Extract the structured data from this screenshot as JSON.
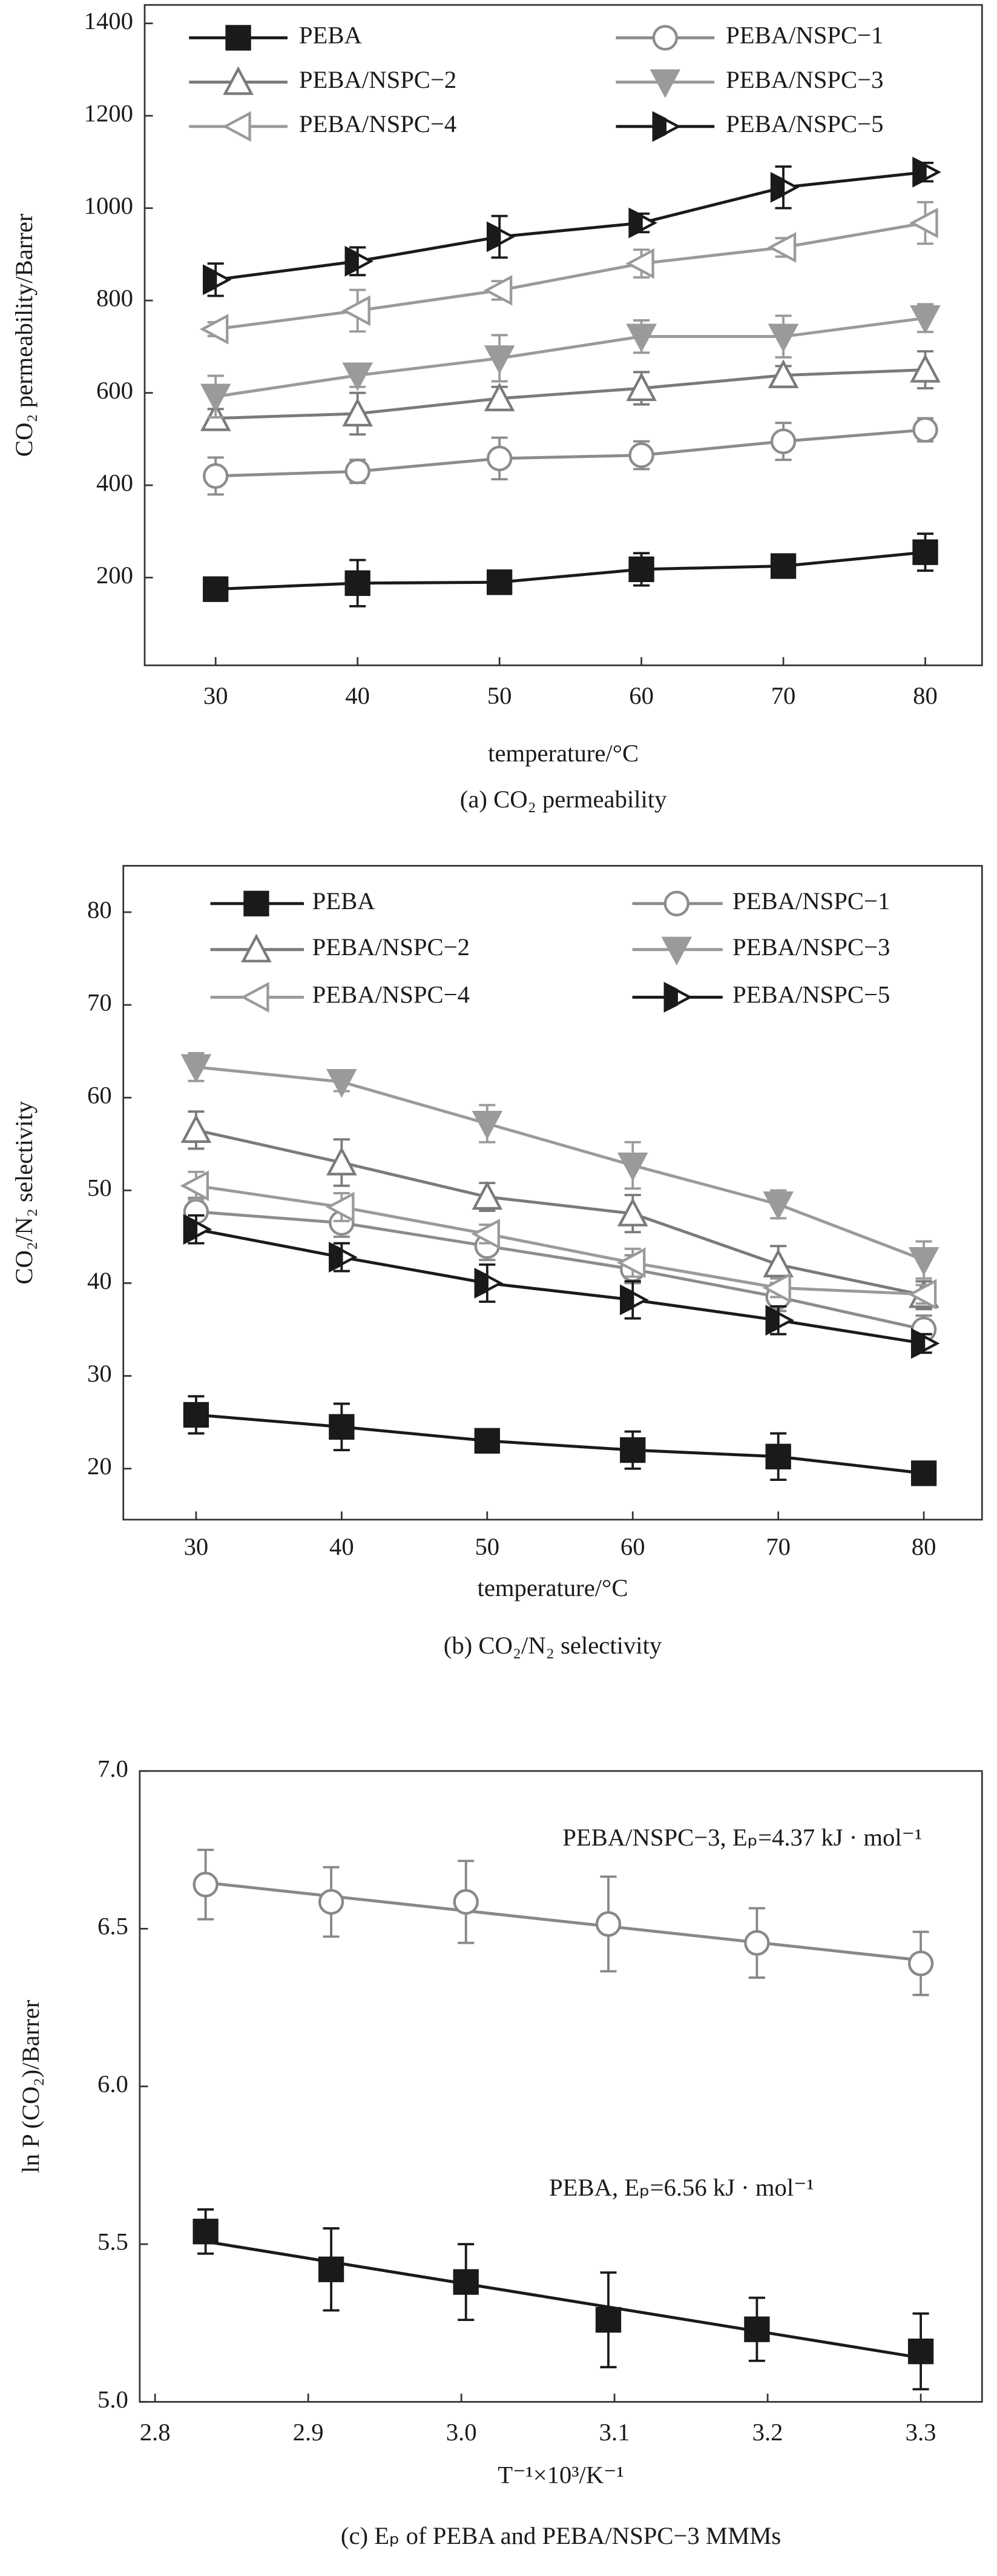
{
  "chart_data": [
    {
      "type": "line",
      "caption": "(a) CO₂ permeability",
      "xlabel": "temperature/°C",
      "ylabel": "CO₂ permeability/Barrer",
      "x": [
        30,
        40,
        50,
        60,
        70,
        80
      ],
      "xlim": [
        25,
        84
      ],
      "xticks": [
        30,
        40,
        50,
        60,
        70,
        80
      ],
      "ylim": [
        10,
        1440
      ],
      "yticks": [
        200,
        400,
        600,
        800,
        1000,
        1200,
        1400
      ],
      "legend": "top",
      "series": [
        {
          "name": "PEBA",
          "color": "#1a1a1a",
          "marker": "square",
          "values": [
            175,
            188,
            190,
            218,
            225,
            255
          ],
          "errors": [
            25,
            50,
            20,
            35,
            15,
            40
          ]
        },
        {
          "name": "PEBA/NSPC−1",
          "color": "#8c8c8c",
          "marker": "circle-open",
          "values": [
            420,
            430,
            458,
            465,
            495,
            520
          ],
          "errors": [
            40,
            25,
            45,
            30,
            40,
            25
          ]
        },
        {
          "name": "PEBA/NSPC−2",
          "color": "#7a7a7a",
          "marker": "triangle-up-open",
          "values": [
            545,
            555,
            588,
            610,
            638,
            650
          ],
          "errors": [
            20,
            45,
            25,
            35,
            20,
            40
          ]
        },
        {
          "name": "PEBA/NSPC−3",
          "color": "#9a9a9a",
          "marker": "triangle-down",
          "values": [
            592,
            638,
            675,
            722,
            722,
            762
          ],
          "errors": [
            45,
            25,
            50,
            35,
            45,
            30
          ]
        },
        {
          "name": "PEBA/NSPC−4",
          "color": "#9a9a9a",
          "marker": "triangle-left-open",
          "values": [
            738,
            778,
            822,
            880,
            915,
            968
          ],
          "errors": [
            15,
            45,
            20,
            30,
            20,
            45
          ]
        },
        {
          "name": "PEBA/NSPC−5",
          "color": "#1a1a1a",
          "marker": "triangle-right-half",
          "values": [
            845,
            885,
            938,
            968,
            1045,
            1078
          ],
          "errors": [
            35,
            30,
            45,
            20,
            45,
            20
          ]
        }
      ]
    },
    {
      "type": "line",
      "caption": "(b) CO₂/N₂ selectivity",
      "xlabel": "temperature/°C",
      "ylabel": "CO₂/N₂ selectivity",
      "x": [
        30,
        40,
        50,
        60,
        70,
        80
      ],
      "xlim": [
        25,
        84
      ],
      "xticks": [
        30,
        40,
        50,
        60,
        70,
        80
      ],
      "ylim": [
        14.5,
        85
      ],
      "yticks": [
        20,
        30,
        40,
        50,
        60,
        70,
        80
      ],
      "legend": "top",
      "series": [
        {
          "name": "PEBA",
          "color": "#1a1a1a",
          "marker": "square",
          "values": [
            25.8,
            24.5,
            23,
            22,
            21.3,
            19.5
          ],
          "errors": [
            2,
            2.5,
            1,
            2,
            2.5,
            1
          ]
        },
        {
          "name": "PEBA/NSPC−1",
          "color": "#8c8c8c",
          "marker": "circle-open",
          "values": [
            47.7,
            46.5,
            44,
            41.5,
            38.5,
            35
          ],
          "errors": [
            1.5,
            1.5,
            1.5,
            1.5,
            1.5,
            1.5
          ]
        },
        {
          "name": "PEBA/NSPC−2",
          "color": "#7a7a7a",
          "marker": "triangle-up-open",
          "values": [
            56.5,
            53,
            49.3,
            47.5,
            42,
            38.7
          ],
          "errors": [
            2,
            2.5,
            1.5,
            2,
            2,
            1.5
          ]
        },
        {
          "name": "PEBA/NSPC−3",
          "color": "#9a9a9a",
          "marker": "triangle-down",
          "values": [
            63.3,
            61.7,
            57.2,
            52.7,
            48.5,
            42.5
          ],
          "errors": [
            1.5,
            1,
            2,
            2.5,
            1.5,
            2
          ]
        },
        {
          "name": "PEBA/NSPC−4",
          "color": "#9a9a9a",
          "marker": "triangle-left-open",
          "values": [
            50.5,
            48.2,
            45.3,
            42.2,
            39.5,
            38.8
          ],
          "errors": [
            1.5,
            1.5,
            1,
            1.5,
            1,
            1
          ]
        },
        {
          "name": "PEBA/NSPC−5",
          "color": "#1a1a1a",
          "marker": "triangle-right-half",
          "values": [
            45.8,
            42.8,
            40,
            38.2,
            36,
            33.5
          ],
          "errors": [
            1.5,
            1.5,
            2,
            2,
            1.5,
            1
          ]
        }
      ]
    },
    {
      "type": "scatter",
      "caption": "(c) Eₚ of PEBA and PEBA/NSPC−3 MMMs",
      "xlabel": "T⁻¹×10³/K⁻¹",
      "ylabel": "ln P (CO₂)/Barrer",
      "x": [
        2.833,
        2.915,
        3.003,
        3.096,
        3.193,
        3.3
      ],
      "xlim": [
        2.79,
        3.34
      ],
      "xticks": [
        2.8,
        2.9,
        {
          "value": 3,
          "label": "3.0"
        },
        3.1,
        3.2,
        3.3
      ],
      "ylim": [
        5,
        7
      ],
      "yticks": [
        {
          "value": 5,
          "label": "5.0"
        },
        5.5,
        {
          "value": 6,
          "label": "6.0"
        },
        6.5,
        {
          "value": 7,
          "label": "7.0"
        }
      ],
      "trendline": true,
      "annotations": [
        "PEBA/NSPC−3,  Eₚ=4.37 kJ · mol⁻¹",
        "PEBA, Eₚ=6.56  kJ · mol⁻¹"
      ],
      "series": [
        {
          "color": "#888888",
          "marker": "circle-open",
          "values": [
            6.64,
            6.585,
            6.585,
            6.515,
            6.455,
            6.39
          ],
          "errors": [
            0.11,
            0.11,
            0.13,
            0.15,
            0.11,
            0.1
          ]
        },
        {
          "color": "#1a1a1a",
          "marker": "square",
          "values": [
            5.54,
            5.42,
            5.38,
            5.26,
            5.23,
            5.16
          ],
          "errors": [
            0.07,
            0.13,
            0.12,
            0.15,
            0.1,
            0.12
          ]
        }
      ]
    }
  ]
}
